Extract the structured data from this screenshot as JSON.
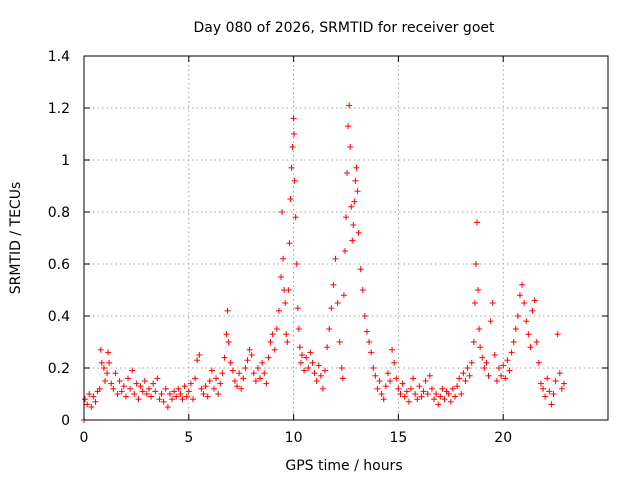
{
  "chart_data": {
    "type": "scatter",
    "title": "Day 080 of 2026, SRMTID for receiver goet",
    "xlabel": "GPS time / hours",
    "ylabel": "SRMTID / TECUs",
    "xlim": [
      0,
      25
    ],
    "ylim": [
      0,
      1.4
    ],
    "xticks": [
      0,
      5,
      10,
      15,
      20
    ],
    "xtick_labels": [
      "0",
      "5",
      "10",
      "15",
      "20"
    ],
    "yticks": [
      0,
      0.2,
      0.4,
      0.6,
      0.8,
      1.0,
      1.2,
      1.4
    ],
    "ytick_labels": [
      "0",
      "0.2",
      "0.4",
      "0.6",
      "0.8",
      "1",
      "1.2",
      "1.4"
    ],
    "grid": true,
    "marker": "plus",
    "series": [
      {
        "name": "SRMTID",
        "color": "#ff0000",
        "points": [
          [
            0.0,
            0.0
          ],
          [
            0.05,
            0.08
          ],
          [
            0.15,
            0.06
          ],
          [
            0.25,
            0.1
          ],
          [
            0.35,
            0.05
          ],
          [
            0.45,
            0.09
          ],
          [
            0.55,
            0.07
          ],
          [
            0.65,
            0.11
          ],
          [
            0.75,
            0.12
          ],
          [
            0.8,
            0.27
          ],
          [
            0.85,
            0.22
          ],
          [
            0.95,
            0.2
          ],
          [
            1.0,
            0.15
          ],
          [
            1.1,
            0.18
          ],
          [
            1.15,
            0.26
          ],
          [
            1.2,
            0.22
          ],
          [
            1.3,
            0.14
          ],
          [
            1.4,
            0.12
          ],
          [
            1.5,
            0.18
          ],
          [
            1.6,
            0.1
          ],
          [
            1.7,
            0.15
          ],
          [
            1.8,
            0.11
          ],
          [
            1.9,
            0.13
          ],
          [
            2.0,
            0.09
          ],
          [
            2.1,
            0.16
          ],
          [
            2.2,
            0.12
          ],
          [
            2.3,
            0.19
          ],
          [
            2.4,
            0.1
          ],
          [
            2.5,
            0.14
          ],
          [
            2.6,
            0.08
          ],
          [
            2.7,
            0.13
          ],
          [
            2.8,
            0.11
          ],
          [
            2.9,
            0.15
          ],
          [
            3.0,
            0.1
          ],
          [
            3.1,
            0.12
          ],
          [
            3.2,
            0.09
          ],
          [
            3.3,
            0.14
          ],
          [
            3.4,
            0.11
          ],
          [
            3.5,
            0.16
          ],
          [
            3.6,
            0.08
          ],
          [
            3.7,
            0.1
          ],
          [
            3.8,
            0.07
          ],
          [
            3.9,
            0.12
          ],
          [
            4.0,
            0.05
          ],
          [
            4.1,
            0.1
          ],
          [
            4.2,
            0.08
          ],
          [
            4.3,
            0.11
          ],
          [
            4.4,
            0.09
          ],
          [
            4.5,
            0.12
          ],
          [
            4.6,
            0.1
          ],
          [
            4.7,
            0.08
          ],
          [
            4.8,
            0.13
          ],
          [
            4.9,
            0.09
          ],
          [
            5.0,
            0.11
          ],
          [
            5.1,
            0.14
          ],
          [
            5.2,
            0.08
          ],
          [
            5.3,
            0.16
          ],
          [
            5.4,
            0.23
          ],
          [
            5.5,
            0.25
          ],
          [
            5.6,
            0.12
          ],
          [
            5.7,
            0.1
          ],
          [
            5.8,
            0.13
          ],
          [
            5.9,
            0.09
          ],
          [
            6.0,
            0.15
          ],
          [
            6.1,
            0.19
          ],
          [
            6.2,
            0.12
          ],
          [
            6.3,
            0.16
          ],
          [
            6.4,
            0.1
          ],
          [
            6.5,
            0.14
          ],
          [
            6.6,
            0.18
          ],
          [
            6.7,
            0.24
          ],
          [
            6.8,
            0.33
          ],
          [
            6.85,
            0.42
          ],
          [
            6.9,
            0.3
          ],
          [
            7.0,
            0.22
          ],
          [
            7.1,
            0.19
          ],
          [
            7.2,
            0.15
          ],
          [
            7.3,
            0.13
          ],
          [
            7.4,
            0.18
          ],
          [
            7.5,
            0.12
          ],
          [
            7.6,
            0.16
          ],
          [
            7.7,
            0.2
          ],
          [
            7.8,
            0.23
          ],
          [
            7.9,
            0.27
          ],
          [
            8.0,
            0.25
          ],
          [
            8.1,
            0.18
          ],
          [
            8.2,
            0.15
          ],
          [
            8.3,
            0.2
          ],
          [
            8.4,
            0.16
          ],
          [
            8.5,
            0.22
          ],
          [
            8.6,
            0.18
          ],
          [
            8.7,
            0.14
          ],
          [
            8.8,
            0.24
          ],
          [
            8.9,
            0.3
          ],
          [
            9.0,
            0.33
          ],
          [
            9.1,
            0.27
          ],
          [
            9.2,
            0.35
          ],
          [
            9.3,
            0.42
          ],
          [
            9.4,
            0.55
          ],
          [
            9.45,
            0.8
          ],
          [
            9.5,
            0.62
          ],
          [
            9.55,
            0.5
          ],
          [
            9.6,
            0.45
          ],
          [
            9.65,
            0.33
          ],
          [
            9.7,
            0.3
          ],
          [
            9.75,
            0.5
          ],
          [
            9.8,
            0.68
          ],
          [
            9.85,
            0.85
          ],
          [
            9.9,
            0.97
          ],
          [
            9.95,
            1.05
          ],
          [
            10.0,
            1.16
          ],
          [
            10.02,
            1.1
          ],
          [
            10.05,
            0.92
          ],
          [
            10.1,
            0.78
          ],
          [
            10.15,
            0.6
          ],
          [
            10.2,
            0.43
          ],
          [
            10.25,
            0.35
          ],
          [
            10.3,
            0.28
          ],
          [
            10.35,
            0.22
          ],
          [
            10.4,
            0.25
          ],
          [
            10.5,
            0.19
          ],
          [
            10.6,
            0.24
          ],
          [
            10.7,
            0.2
          ],
          [
            10.8,
            0.26
          ],
          [
            10.9,
            0.22
          ],
          [
            11.0,
            0.18
          ],
          [
            11.1,
            0.15
          ],
          [
            11.2,
            0.21
          ],
          [
            11.3,
            0.17
          ],
          [
            11.4,
            0.12
          ],
          [
            11.5,
            0.19
          ],
          [
            11.6,
            0.28
          ],
          [
            11.7,
            0.35
          ],
          [
            11.8,
            0.43
          ],
          [
            11.9,
            0.52
          ],
          [
            12.0,
            0.62
          ],
          [
            12.1,
            0.45
          ],
          [
            12.2,
            0.3
          ],
          [
            12.3,
            0.2
          ],
          [
            12.35,
            0.16
          ],
          [
            12.4,
            0.48
          ],
          [
            12.45,
            0.65
          ],
          [
            12.5,
            0.78
          ],
          [
            12.55,
            0.95
          ],
          [
            12.6,
            1.13
          ],
          [
            12.65,
            1.21
          ],
          [
            12.7,
            1.05
          ],
          [
            12.75,
            0.82
          ],
          [
            12.8,
            0.69
          ],
          [
            12.85,
            0.75
          ],
          [
            12.9,
            0.84
          ],
          [
            12.95,
            0.92
          ],
          [
            13.0,
            0.97
          ],
          [
            13.05,
            0.88
          ],
          [
            13.1,
            0.72
          ],
          [
            13.2,
            0.58
          ],
          [
            13.3,
            0.5
          ],
          [
            13.4,
            0.4
          ],
          [
            13.5,
            0.34
          ],
          [
            13.6,
            0.3
          ],
          [
            13.7,
            0.26
          ],
          [
            13.8,
            0.2
          ],
          [
            13.9,
            0.17
          ],
          [
            14.0,
            0.12
          ],
          [
            14.1,
            0.15
          ],
          [
            14.2,
            0.1
          ],
          [
            14.3,
            0.08
          ],
          [
            14.4,
            0.13
          ],
          [
            14.5,
            0.18
          ],
          [
            14.6,
            0.15
          ],
          [
            14.7,
            0.27
          ],
          [
            14.8,
            0.22
          ],
          [
            14.9,
            0.16
          ],
          [
            15.0,
            0.12
          ],
          [
            15.1,
            0.1
          ],
          [
            15.2,
            0.14
          ],
          [
            15.3,
            0.09
          ],
          [
            15.4,
            0.11
          ],
          [
            15.5,
            0.07
          ],
          [
            15.6,
            0.12
          ],
          [
            15.7,
            0.16
          ],
          [
            15.8,
            0.1
          ],
          [
            15.9,
            0.08
          ],
          [
            16.0,
            0.13
          ],
          [
            16.1,
            0.09
          ],
          [
            16.2,
            0.11
          ],
          [
            16.3,
            0.15
          ],
          [
            16.4,
            0.1
          ],
          [
            16.5,
            0.17
          ],
          [
            16.6,
            0.12
          ],
          [
            16.7,
            0.08
          ],
          [
            16.8,
            0.1
          ],
          [
            16.9,
            0.06
          ],
          [
            17.0,
            0.09
          ],
          [
            17.1,
            0.12
          ],
          [
            17.2,
            0.08
          ],
          [
            17.3,
            0.11
          ],
          [
            17.4,
            0.1
          ],
          [
            17.5,
            0.07
          ],
          [
            17.6,
            0.12
          ],
          [
            17.7,
            0.09
          ],
          [
            17.8,
            0.13
          ],
          [
            17.9,
            0.16
          ],
          [
            18.0,
            0.1
          ],
          [
            18.1,
            0.18
          ],
          [
            18.2,
            0.15
          ],
          [
            18.3,
            0.2
          ],
          [
            18.4,
            0.17
          ],
          [
            18.5,
            0.22
          ],
          [
            18.6,
            0.3
          ],
          [
            18.65,
            0.45
          ],
          [
            18.7,
            0.6
          ],
          [
            18.75,
            0.76
          ],
          [
            18.8,
            0.5
          ],
          [
            18.85,
            0.35
          ],
          [
            18.9,
            0.28
          ],
          [
            19.0,
            0.24
          ],
          [
            19.1,
            0.2
          ],
          [
            19.2,
            0.22
          ],
          [
            19.3,
            0.17
          ],
          [
            19.4,
            0.38
          ],
          [
            19.5,
            0.45
          ],
          [
            19.6,
            0.25
          ],
          [
            19.7,
            0.15
          ],
          [
            19.8,
            0.2
          ],
          [
            19.9,
            0.17
          ],
          [
            20.0,
            0.21
          ],
          [
            20.1,
            0.16
          ],
          [
            20.2,
            0.23
          ],
          [
            20.3,
            0.19
          ],
          [
            20.4,
            0.26
          ],
          [
            20.5,
            0.3
          ],
          [
            20.6,
            0.35
          ],
          [
            20.7,
            0.4
          ],
          [
            20.8,
            0.48
          ],
          [
            20.9,
            0.52
          ],
          [
            21.0,
            0.45
          ],
          [
            21.1,
            0.38
          ],
          [
            21.2,
            0.33
          ],
          [
            21.3,
            0.28
          ],
          [
            21.4,
            0.42
          ],
          [
            21.5,
            0.46
          ],
          [
            21.6,
            0.3
          ],
          [
            21.7,
            0.22
          ],
          [
            21.8,
            0.14
          ],
          [
            21.9,
            0.12
          ],
          [
            22.0,
            0.09
          ],
          [
            22.1,
            0.16
          ],
          [
            22.2,
            0.11
          ],
          [
            22.3,
            0.06
          ],
          [
            22.4,
            0.1
          ],
          [
            22.5,
            0.15
          ],
          [
            22.6,
            0.33
          ],
          [
            22.7,
            0.18
          ],
          [
            22.8,
            0.12
          ],
          [
            22.9,
            0.14
          ]
        ]
      }
    ]
  }
}
